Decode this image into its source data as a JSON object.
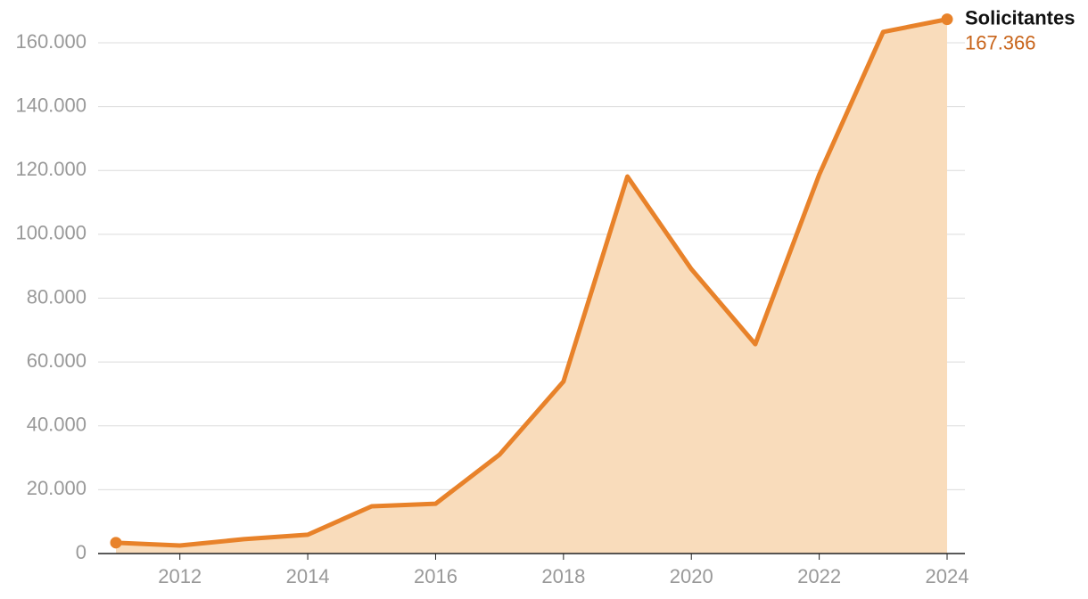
{
  "chart_data": {
    "type": "area",
    "x": [
      2011,
      2012,
      2013,
      2014,
      2015,
      2016,
      2017,
      2018,
      2019,
      2020,
      2021,
      2022,
      2023,
      2024
    ],
    "series": [
      {
        "name": "Solicitantes",
        "color": "#e8822a",
        "fill": "#f9dcbb",
        "label_color": "#c8641a",
        "values": [
          3400,
          2500,
          4500,
          5900,
          14800,
          15600,
          31000,
          53900,
          118100,
          89100,
          65600,
          118700,
          163400,
          167366
        ],
        "value_labels": [
          null,
          null,
          null,
          null,
          null,
          null,
          null,
          null,
          null,
          null,
          null,
          null,
          null,
          "167.366"
        ]
      }
    ],
    "xlim": [
      2010.7,
      2024.3
    ],
    "xticks": [
      2012,
      2014,
      2016,
      2018,
      2020,
      2022,
      2024
    ],
    "ylim": [
      0,
      160000
    ],
    "yticks": [
      0,
      {
        "value": 20000,
        "label": "20.000"
      },
      {
        "value": 40000,
        "label": "40.000"
      },
      {
        "value": 60000,
        "label": "60.000"
      },
      {
        "value": 80000,
        "label": "80.000"
      },
      {
        "value": 100000,
        "label": "100.000"
      },
      {
        "value": 120000,
        "label": "120.000"
      },
      {
        "value": 140000,
        "label": "140.000"
      },
      {
        "value": 160000,
        "label": "160.000"
      }
    ],
    "grid": true
  }
}
